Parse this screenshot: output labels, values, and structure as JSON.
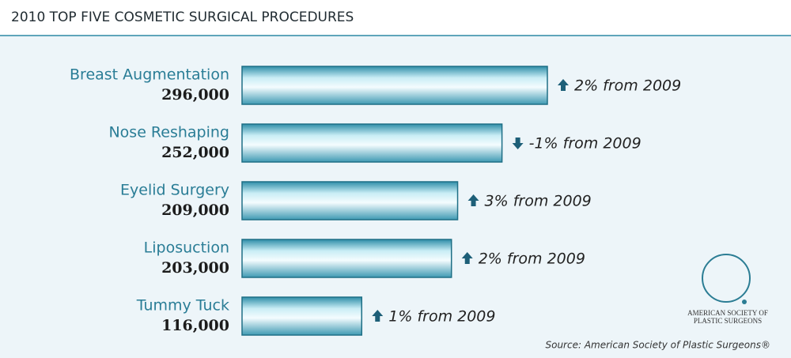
{
  "chart_data": {
    "type": "bar",
    "orientation": "horizontal",
    "title": "2010 TOP FIVE COSMETIC SURGICAL PROCEDURES",
    "categories": [
      "Breast Augmentation",
      "Nose Reshaping",
      "Eyelid Surgery",
      "Liposuction",
      "Tummy Tuck"
    ],
    "values": [
      296000,
      252000,
      209000,
      203000,
      116000
    ],
    "value_labels": [
      "296,000",
      "252,000",
      "209,000",
      "203,000",
      "116,000"
    ],
    "changes": [
      2,
      -1,
      3,
      2,
      1
    ],
    "change_labels": [
      "2% from 2009",
      "-1% from 2009",
      "3% from 2009",
      "2% from 2009",
      "1% from 2009"
    ],
    "color": "#5fb3c8",
    "logo_lines": [
      "AMERICAN SOCIETY OF",
      "PLASTIC SURGEONS"
    ],
    "source": "Source: American Society of Plastic Surgeons®"
  }
}
